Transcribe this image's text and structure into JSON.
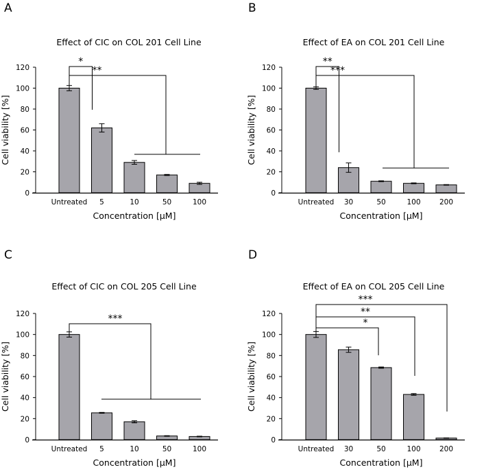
{
  "chart_data": [
    {
      "panel": "A",
      "type": "bar",
      "title": "Effect of CIC on COL 201 Cell Line",
      "xlabel": "Concentration [μM]",
      "ylabel": "Cell viability [%]",
      "ylim": [
        0,
        120
      ],
      "yticks": [
        0,
        20,
        40,
        60,
        80,
        100,
        120
      ],
      "categories": [
        "Untreated",
        "5",
        "10",
        "50",
        "100"
      ],
      "values": [
        100,
        62,
        29,
        17,
        9
      ],
      "errors": [
        2.5,
        4,
        1.8,
        0.5,
        1
      ],
      "significance": [
        {
          "label": "*",
          "to": 1
        },
        {
          "label": "**",
          "to": "2-4"
        }
      ]
    },
    {
      "panel": "B",
      "type": "bar",
      "title": "Effect of EA on COL 201 Cell Line",
      "xlabel": "Concentration [μM]",
      "ylabel": "Cell viability [%]",
      "ylim": [
        0,
        120
      ],
      "yticks": [
        0,
        20,
        40,
        60,
        80,
        100,
        120
      ],
      "categories": [
        "Untreated",
        "30",
        "50",
        "100",
        "200"
      ],
      "values": [
        100,
        24,
        11,
        9,
        7.5
      ],
      "errors": [
        1.2,
        4.5,
        0.4,
        0.4,
        0.3
      ],
      "significance": [
        {
          "label": "**",
          "to": 1
        },
        {
          "label": "***",
          "to": "2-4"
        }
      ]
    },
    {
      "panel": "C",
      "type": "bar",
      "title": "Effect of CIC on COL 205 Cell Line",
      "xlabel": "Concentration [μM]",
      "ylabel": "Cell viability [%]",
      "ylim": [
        0,
        120
      ],
      "yticks": [
        0,
        20,
        40,
        60,
        80,
        100,
        120
      ],
      "categories": [
        "Untreated",
        "5",
        "10",
        "50",
        "100"
      ],
      "values": [
        100,
        25.5,
        17,
        3.5,
        3
      ],
      "errors": [
        2.5,
        0.4,
        1,
        0.3,
        0.3
      ],
      "significance": [
        {
          "label": "***",
          "to": "1-4"
        }
      ]
    },
    {
      "panel": "D",
      "type": "bar",
      "title": "Effect of EA on COL 205 Cell Line",
      "xlabel": "Concentration [μM]",
      "ylabel": "Cell viability [%]",
      "ylim": [
        0,
        120
      ],
      "yticks": [
        0,
        20,
        40,
        60,
        80,
        100,
        120
      ],
      "categories": [
        "Untreated",
        "30",
        "50",
        "100",
        "200"
      ],
      "values": [
        100,
        85.5,
        68.5,
        43,
        1.5
      ],
      "errors": [
        2.8,
        2.5,
        0.6,
        0.8,
        0.2
      ],
      "significance": [
        {
          "label": "***",
          "to": 4
        },
        {
          "label": "**",
          "to": 3
        },
        {
          "label": "*",
          "to": 2
        }
      ]
    }
  ],
  "colors": {
    "bar_fill": "#a6a5ab",
    "stroke": "#000000"
  }
}
